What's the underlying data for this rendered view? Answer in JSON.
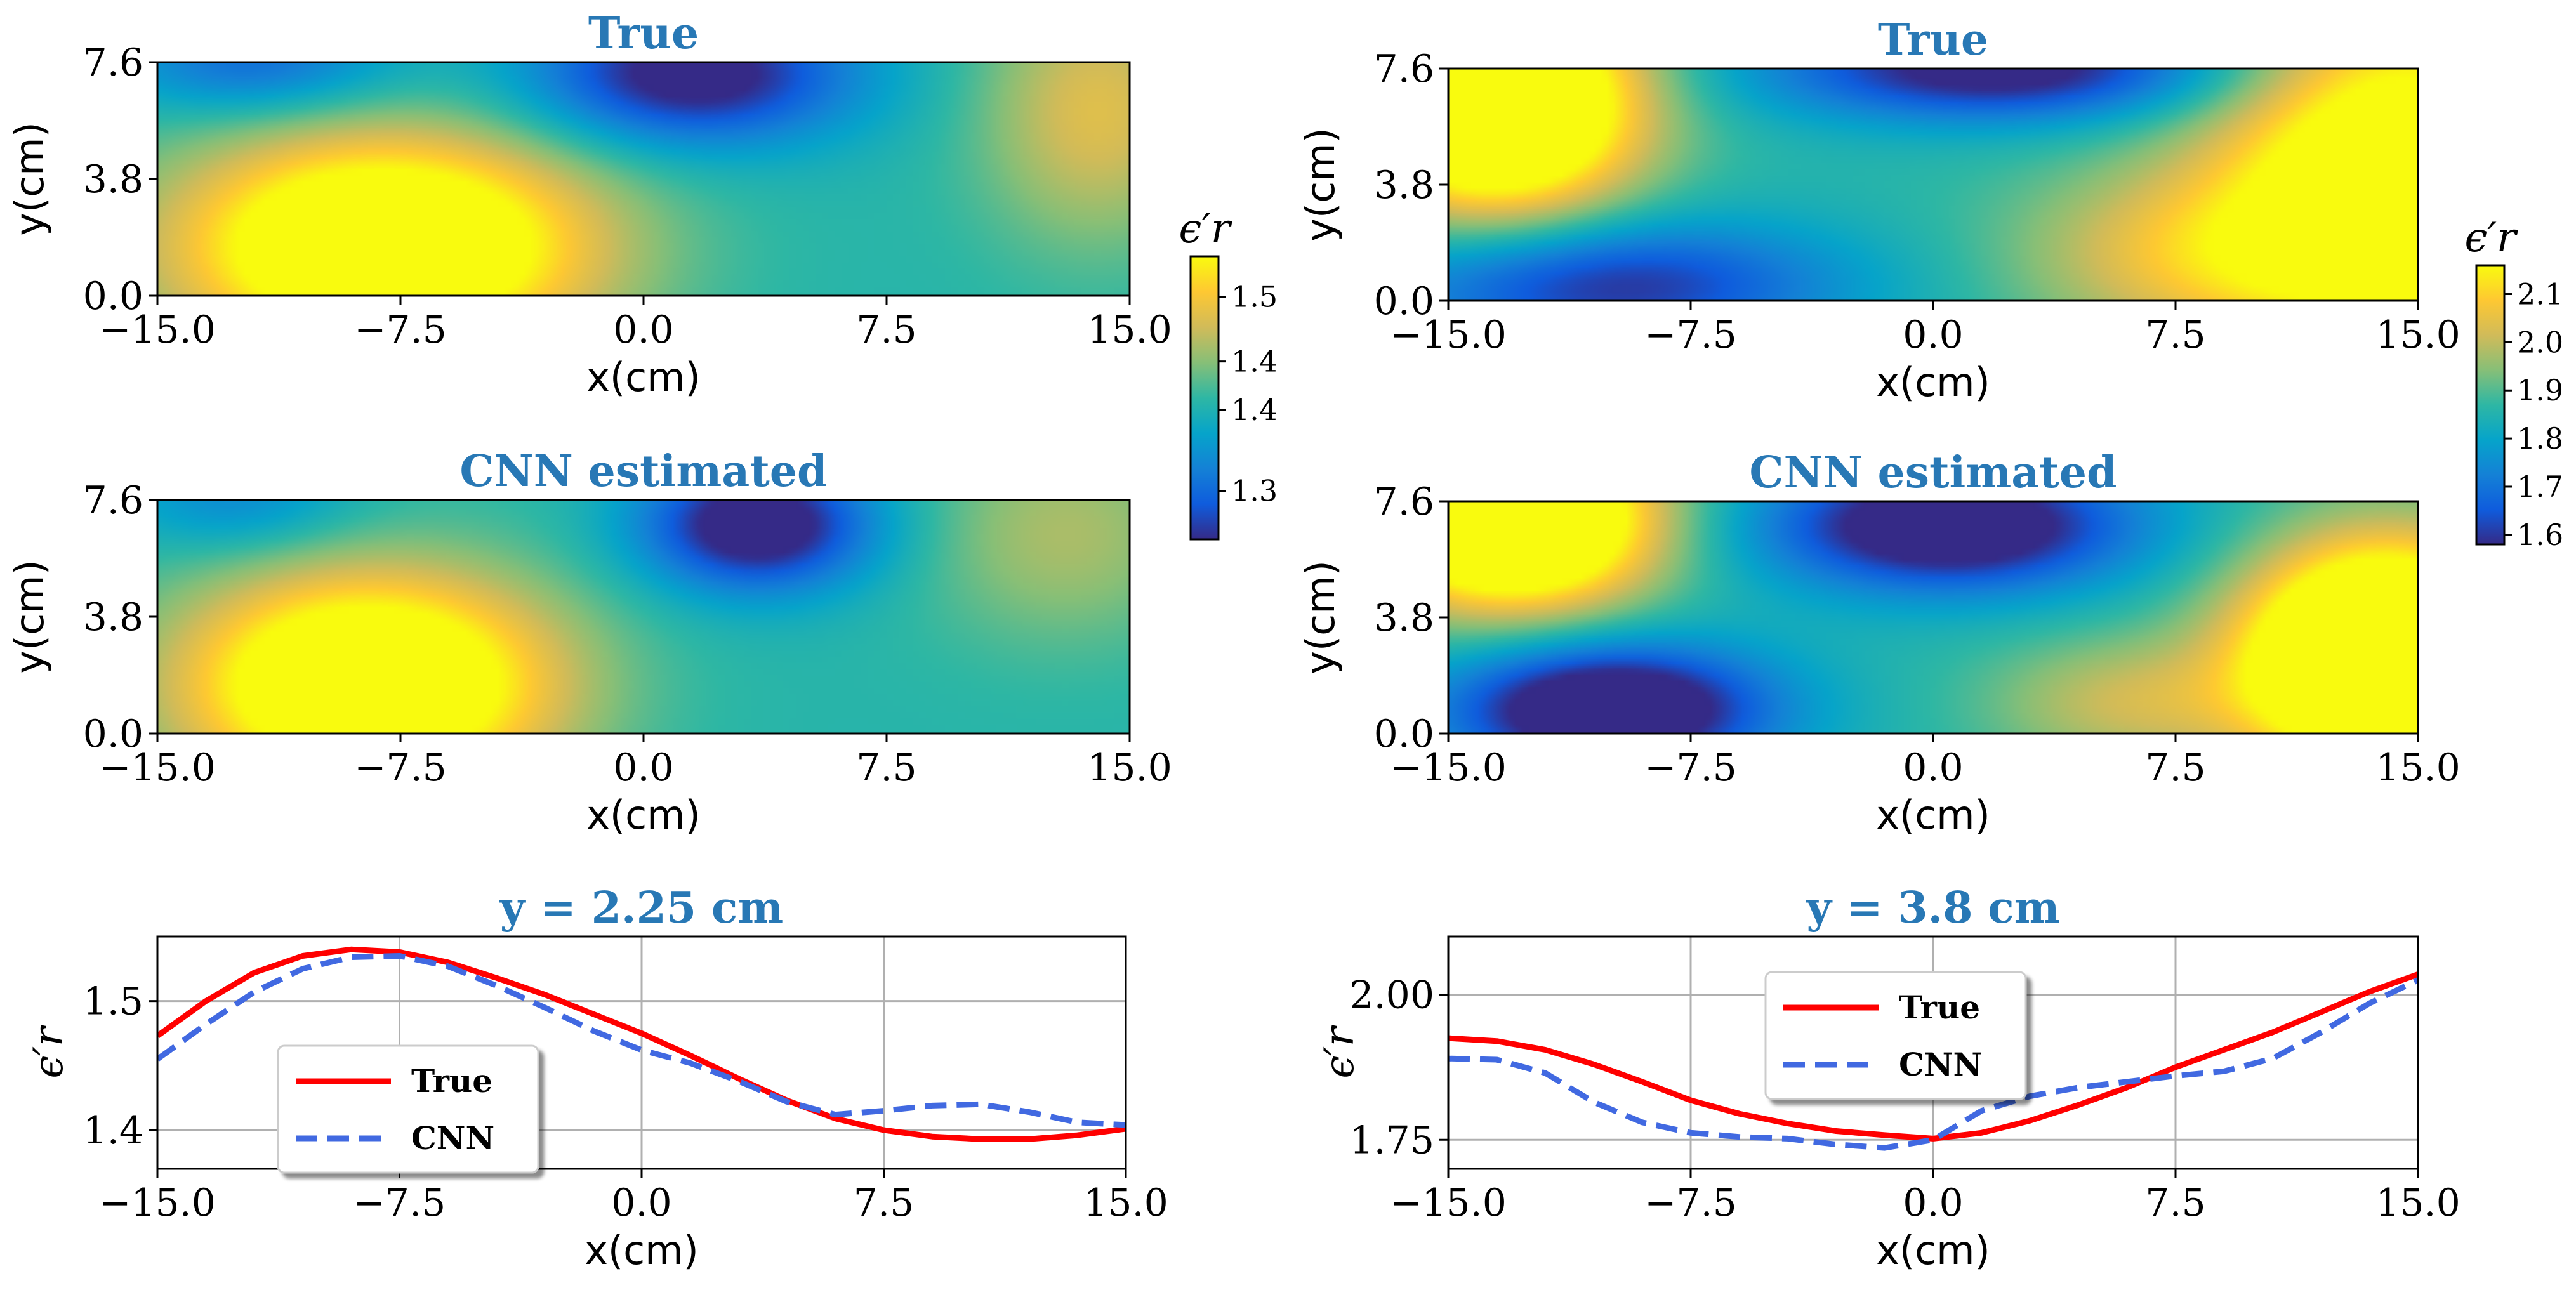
{
  "chart_data": [
    {
      "id": "left_true",
      "type": "heatmap",
      "title": "True",
      "xlabel": "x(cm)",
      "ylabel": "y(cm)",
      "xlim": [
        -15,
        15
      ],
      "ylim": [
        0,
        7.6
      ],
      "xticks": [
        "−15.0",
        "−7.5",
        "0.0",
        "7.5",
        "15.0"
      ],
      "yticks": [
        "0.0",
        "3.8",
        "7.6"
      ],
      "colormap": "parula",
      "vmin": 1.22,
      "vmax": 1.57,
      "blobs": [
        {
          "x": -8.0,
          "y": 1.6,
          "sx": 4.5,
          "sy": 2.5,
          "v": 0.34
        },
        {
          "x": 1.5,
          "y": 7.2,
          "sx": 3.5,
          "sy": 1.6,
          "v": -0.22
        },
        {
          "x": -12.0,
          "y": 7.6,
          "sx": 3.0,
          "sy": 1.2,
          "v": -0.12
        },
        {
          "x": 14.0,
          "y": 6.0,
          "sx": 2.5,
          "sy": 3.0,
          "v": 0.12
        }
      ]
    },
    {
      "id": "left_cnn",
      "type": "heatmap",
      "title": "CNN estimated",
      "xlabel": "x(cm)",
      "ylabel": "y(cm)",
      "xlim": [
        -15,
        15
      ],
      "ylim": [
        0,
        7.6
      ],
      "xticks": [
        "−15.0",
        "−7.5",
        "0.0",
        "7.5",
        "15.0"
      ],
      "yticks": [
        "0.0",
        "3.8",
        "7.6"
      ],
      "colormap": "parula",
      "vmin": 1.22,
      "vmax": 1.57,
      "blobs": [
        {
          "x": -8.5,
          "y": 1.6,
          "sx": 4.0,
          "sy": 2.5,
          "v": 0.34
        },
        {
          "x": 3.5,
          "y": 6.8,
          "sx": 2.5,
          "sy": 1.5,
          "v": -0.24
        },
        {
          "x": -12.5,
          "y": 7.6,
          "sx": 2.5,
          "sy": 1.2,
          "v": -0.08
        },
        {
          "x": 13.0,
          "y": 6.5,
          "sx": 3.0,
          "sy": 2.5,
          "v": 0.08
        }
      ]
    },
    {
      "id": "right_true",
      "type": "heatmap",
      "title": "True",
      "xlabel": "x(cm)",
      "ylabel": "y(cm)",
      "xlim": [
        -15,
        15
      ],
      "ylim": [
        0,
        7.6
      ],
      "xticks": [
        "−15.0",
        "−7.5",
        "0.0",
        "7.5",
        "15.0"
      ],
      "yticks": [
        "0.0",
        "3.8",
        "7.6"
      ],
      "colormap": "parula",
      "vmin": 1.58,
      "vmax": 2.16,
      "blobs": [
        {
          "x": -13.5,
          "y": 6.5,
          "sx": 3.0,
          "sy": 2.5,
          "v": 0.42
        },
        {
          "x": 14.5,
          "y": 4.0,
          "sx": 4.0,
          "sy": 4.0,
          "v": 0.3
        },
        {
          "x": 2.0,
          "y": 7.6,
          "sx": 5.0,
          "sy": 1.2,
          "v": -0.22
        },
        {
          "x": -10.0,
          "y": 0.5,
          "sx": 5.0,
          "sy": 1.5,
          "v": -0.18
        },
        {
          "x": 8.0,
          "y": 1.5,
          "sx": 4.0,
          "sy": 2.0,
          "v": 0.12
        }
      ]
    },
    {
      "id": "right_cnn",
      "type": "heatmap",
      "title": "CNN estimated",
      "xlabel": "x(cm)",
      "ylabel": "y(cm)",
      "xlim": [
        -15,
        15
      ],
      "ylim": [
        0,
        7.6
      ],
      "xticks": [
        "−15.0",
        "−7.5",
        "0.0",
        "7.5",
        "15.0"
      ],
      "yticks": [
        "0.0",
        "3.8",
        "7.6"
      ],
      "colormap": "parula",
      "vmin": 1.58,
      "vmax": 2.16,
      "blobs": [
        {
          "x": -13.0,
          "y": 7.0,
          "sx": 3.0,
          "sy": 2.0,
          "v": 0.42
        },
        {
          "x": 14.0,
          "y": 2.5,
          "sx": 3.0,
          "sy": 2.5,
          "v": 0.48
        },
        {
          "x": 0.5,
          "y": 6.8,
          "sx": 4.0,
          "sy": 1.5,
          "v": -0.26
        },
        {
          "x": -10.0,
          "y": 0.8,
          "sx": 3.5,
          "sy": 1.5,
          "v": -0.28
        },
        {
          "x": 6.0,
          "y": 1.0,
          "sx": 3.0,
          "sy": 1.5,
          "v": 0.1
        }
      ]
    },
    {
      "id": "left_colorbar",
      "type": "colorbar",
      "label": "ϵ′r",
      "range": [
        1.22,
        1.57
      ],
      "ticks": [
        {
          "v": 1.28,
          "label": "1.3"
        },
        {
          "v": 1.38,
          "label": "1.4"
        },
        {
          "v": 1.44,
          "label": "1.4"
        },
        {
          "v": 1.52,
          "label": "1.5"
        }
      ]
    },
    {
      "id": "right_colorbar",
      "type": "colorbar",
      "label": "ϵ′r",
      "range": [
        1.58,
        2.16
      ],
      "ticks": [
        {
          "v": 1.6,
          "label": "1.6"
        },
        {
          "v": 1.7,
          "label": "1.7"
        },
        {
          "v": 1.8,
          "label": "1.8"
        },
        {
          "v": 1.9,
          "label": "1.9"
        },
        {
          "v": 2.0,
          "label": "2.0"
        },
        {
          "v": 2.1,
          "label": "2.1"
        }
      ]
    },
    {
      "id": "left_line",
      "type": "line",
      "title": "y = 2.25 cm",
      "xlabel": "x(cm)",
      "ylabel": "ϵ′r",
      "xlim": [
        -15,
        15
      ],
      "ylim": [
        1.37,
        1.55
      ],
      "xticks": [
        {
          "v": -15,
          "label": "−15.0"
        },
        {
          "v": -7.5,
          "label": "−7.5"
        },
        {
          "v": 0,
          "label": "0.0"
        },
        {
          "v": 7.5,
          "label": "7.5"
        },
        {
          "v": 15,
          "label": "15.0"
        }
      ],
      "yticks": [
        {
          "v": 1.4,
          "label": "1.4"
        },
        {
          "v": 1.5,
          "label": "1.5"
        }
      ],
      "grid": true,
      "legend": "lower-left",
      "x": [
        -15,
        -13.5,
        -12,
        -10.5,
        -9,
        -7.5,
        -6,
        -4.5,
        -3,
        -1.5,
        0,
        1.5,
        3,
        4.5,
        6,
        7.5,
        9,
        10.5,
        12,
        13.5,
        15
      ],
      "series": [
        {
          "name": "True",
          "style": "solid",
          "color": "#ff0000",
          "values": [
            1.473,
            1.5,
            1.522,
            1.535,
            1.54,
            1.538,
            1.53,
            1.518,
            1.505,
            1.49,
            1.475,
            1.458,
            1.44,
            1.423,
            1.409,
            1.4,
            1.395,
            1.393,
            1.393,
            1.396,
            1.401
          ]
        },
        {
          "name": "CNN",
          "style": "dashed",
          "color": "#4169e1",
          "values": [
            1.455,
            1.482,
            1.507,
            1.525,
            1.534,
            1.535,
            1.527,
            1.512,
            1.495,
            1.477,
            1.462,
            1.452,
            1.438,
            1.422,
            1.412,
            1.415,
            1.419,
            1.42,
            1.414,
            1.406,
            1.404
          ]
        }
      ]
    },
    {
      "id": "right_line",
      "type": "line",
      "title": "y = 3.8 cm",
      "xlabel": "x(cm)",
      "ylabel": "ϵ′r",
      "xlim": [
        -15,
        15
      ],
      "ylim": [
        1.7,
        2.1
      ],
      "xticks": [
        {
          "v": -15,
          "label": "−15.0"
        },
        {
          "v": -7.5,
          "label": "−7.5"
        },
        {
          "v": 0,
          "label": "0.0"
        },
        {
          "v": 7.5,
          "label": "7.5"
        },
        {
          "v": 15,
          "label": "15.0"
        }
      ],
      "yticks": [
        {
          "v": 1.75,
          "label": "1.75"
        },
        {
          "v": 2.0,
          "label": "2.00"
        }
      ],
      "grid": true,
      "legend": "top-center",
      "x": [
        -15,
        -13.5,
        -12,
        -10.5,
        -9,
        -7.5,
        -6,
        -4.5,
        -3,
        -1.5,
        0,
        1.5,
        3,
        4.5,
        6,
        7.5,
        9,
        10.5,
        12,
        13.5,
        15
      ],
      "series": [
        {
          "name": "True",
          "style": "solid",
          "color": "#ff0000",
          "values": [
            1.925,
            1.92,
            1.905,
            1.88,
            1.85,
            1.818,
            1.795,
            1.778,
            1.765,
            1.758,
            1.752,
            1.762,
            1.783,
            1.81,
            1.84,
            1.875,
            1.905,
            1.935,
            1.97,
            2.005,
            2.035
          ]
        },
        {
          "name": "CNN",
          "style": "dashed",
          "color": "#4169e1",
          "values": [
            1.89,
            1.888,
            1.865,
            1.815,
            1.78,
            1.762,
            1.755,
            1.752,
            1.742,
            1.736,
            1.75,
            1.8,
            1.825,
            1.84,
            1.85,
            1.86,
            1.868,
            1.89,
            1.935,
            1.985,
            2.025
          ]
        }
      ]
    }
  ]
}
